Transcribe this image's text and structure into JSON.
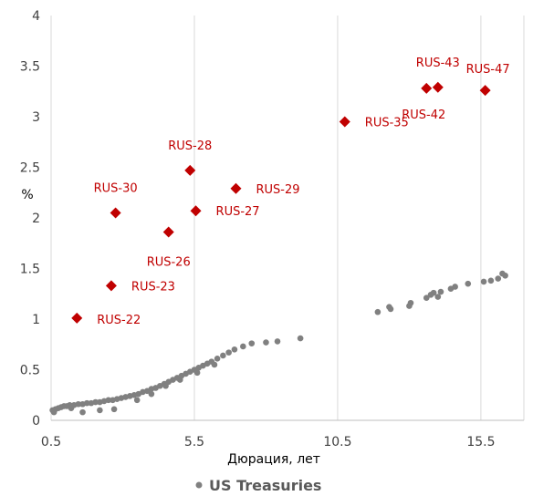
{
  "chart_data": {
    "type": "scatter",
    "xlabel": "Дюрация, лет",
    "ylabel": "%",
    "xlim": [
      0.5,
      17
    ],
    "ylim": [
      0,
      4
    ],
    "xticks": [
      "0.5",
      "5.5",
      "10.5",
      "15.5"
    ],
    "yticks": [
      "0",
      "0.5",
      "1",
      "1.5",
      "2",
      "2.5",
      "3",
      "3.5",
      "4"
    ],
    "grid": {
      "vertical": true,
      "horizontal": false
    },
    "legend_position": "bottom",
    "colors": {
      "russia": "#c00000",
      "ust": "#808080",
      "grid": "#d9d9d9"
    },
    "series": [
      {
        "key": "russia",
        "marker": "diamond",
        "points": [
          {
            "x": 1.4,
            "y": 1.01,
            "label": "RUS-22"
          },
          {
            "x": 2.6,
            "y": 1.33,
            "label": "RUS-23"
          },
          {
            "x": 4.6,
            "y": 1.86,
            "label": "RUS-26"
          },
          {
            "x": 5.55,
            "y": 2.07,
            "label": "RUS-27"
          },
          {
            "x": 5.35,
            "y": 2.47,
            "label": "RUS-28"
          },
          {
            "x": 6.95,
            "y": 2.29,
            "label": "RUS-29"
          },
          {
            "x": 2.75,
            "y": 2.05,
            "label": "RUS-30"
          },
          {
            "x": 10.75,
            "y": 2.95,
            "label": "RUS-35"
          },
          {
            "x": 13.6,
            "y": 3.28,
            "label": "RUS-42"
          },
          {
            "x": 14.0,
            "y": 3.29,
            "label": "RUS-43"
          },
          {
            "x": 15.65,
            "y": 3.26,
            "label": "RUS-47"
          }
        ]
      },
      {
        "key": "ust",
        "name": "US Treasuries",
        "marker": "circle",
        "points": [
          {
            "x": 0.55,
            "y": 0.1
          },
          {
            "x": 0.65,
            "y": 0.11
          },
          {
            "x": 0.75,
            "y": 0.12
          },
          {
            "x": 0.85,
            "y": 0.13
          },
          {
            "x": 0.95,
            "y": 0.14
          },
          {
            "x": 1.05,
            "y": 0.14
          },
          {
            "x": 1.15,
            "y": 0.15
          },
          {
            "x": 1.3,
            "y": 0.15
          },
          {
            "x": 1.45,
            "y": 0.16
          },
          {
            "x": 1.6,
            "y": 0.16
          },
          {
            "x": 1.75,
            "y": 0.17
          },
          {
            "x": 1.9,
            "y": 0.17
          },
          {
            "x": 2.05,
            "y": 0.18
          },
          {
            "x": 2.2,
            "y": 0.18
          },
          {
            "x": 2.35,
            "y": 0.19
          },
          {
            "x": 2.5,
            "y": 0.2
          },
          {
            "x": 2.65,
            "y": 0.2
          },
          {
            "x": 2.8,
            "y": 0.21
          },
          {
            "x": 2.95,
            "y": 0.22
          },
          {
            "x": 3.1,
            "y": 0.23
          },
          {
            "x": 3.25,
            "y": 0.24
          },
          {
            "x": 3.4,
            "y": 0.25
          },
          {
            "x": 3.55,
            "y": 0.26
          },
          {
            "x": 3.7,
            "y": 0.28
          },
          {
            "x": 3.85,
            "y": 0.29
          },
          {
            "x": 4.0,
            "y": 0.31
          },
          {
            "x": 4.15,
            "y": 0.32
          },
          {
            "x": 4.3,
            "y": 0.34
          },
          {
            "x": 4.45,
            "y": 0.36
          },
          {
            "x": 4.6,
            "y": 0.38
          },
          {
            "x": 4.75,
            "y": 0.4
          },
          {
            "x": 4.9,
            "y": 0.42
          },
          {
            "x": 5.05,
            "y": 0.44
          },
          {
            "x": 5.2,
            "y": 0.46
          },
          {
            "x": 5.35,
            "y": 0.48
          },
          {
            "x": 5.5,
            "y": 0.5
          },
          {
            "x": 5.65,
            "y": 0.52
          },
          {
            "x": 5.8,
            "y": 0.54
          },
          {
            "x": 5.95,
            "y": 0.56
          },
          {
            "x": 6.1,
            "y": 0.58
          },
          {
            "x": 6.3,
            "y": 0.61
          },
          {
            "x": 6.5,
            "y": 0.64
          },
          {
            "x": 6.7,
            "y": 0.67
          },
          {
            "x": 6.9,
            "y": 0.7
          },
          {
            "x": 7.2,
            "y": 0.73
          },
          {
            "x": 7.5,
            "y": 0.76
          },
          {
            "x": 8.0,
            "y": 0.77
          },
          {
            "x": 8.4,
            "y": 0.78
          },
          {
            "x": 9.2,
            "y": 0.81
          },
          {
            "x": 0.6,
            "y": 0.08
          },
          {
            "x": 1.2,
            "y": 0.12
          },
          {
            "x": 1.6,
            "y": 0.08
          },
          {
            "x": 2.2,
            "y": 0.1
          },
          {
            "x": 2.7,
            "y": 0.11
          },
          {
            "x": 3.5,
            "y": 0.2
          },
          {
            "x": 4.0,
            "y": 0.26
          },
          {
            "x": 4.5,
            "y": 0.34
          },
          {
            "x": 5.0,
            "y": 0.4
          },
          {
            "x": 5.6,
            "y": 0.47
          },
          {
            "x": 6.2,
            "y": 0.55
          },
          {
            "x": 11.9,
            "y": 1.07
          },
          {
            "x": 12.3,
            "y": 1.12
          },
          {
            "x": 12.35,
            "y": 1.1
          },
          {
            "x": 13.0,
            "y": 1.13
          },
          {
            "x": 13.05,
            "y": 1.16
          },
          {
            "x": 13.6,
            "y": 1.21
          },
          {
            "x": 13.75,
            "y": 1.24
          },
          {
            "x": 13.85,
            "y": 1.26
          },
          {
            "x": 14.0,
            "y": 1.22
          },
          {
            "x": 14.1,
            "y": 1.27
          },
          {
            "x": 14.45,
            "y": 1.3
          },
          {
            "x": 14.6,
            "y": 1.32
          },
          {
            "x": 15.05,
            "y": 1.35
          },
          {
            "x": 15.6,
            "y": 1.37
          },
          {
            "x": 15.85,
            "y": 1.38
          },
          {
            "x": 16.1,
            "y": 1.4
          },
          {
            "x": 16.25,
            "y": 1.45
          },
          {
            "x": 16.35,
            "y": 1.43
          }
        ]
      }
    ]
  }
}
